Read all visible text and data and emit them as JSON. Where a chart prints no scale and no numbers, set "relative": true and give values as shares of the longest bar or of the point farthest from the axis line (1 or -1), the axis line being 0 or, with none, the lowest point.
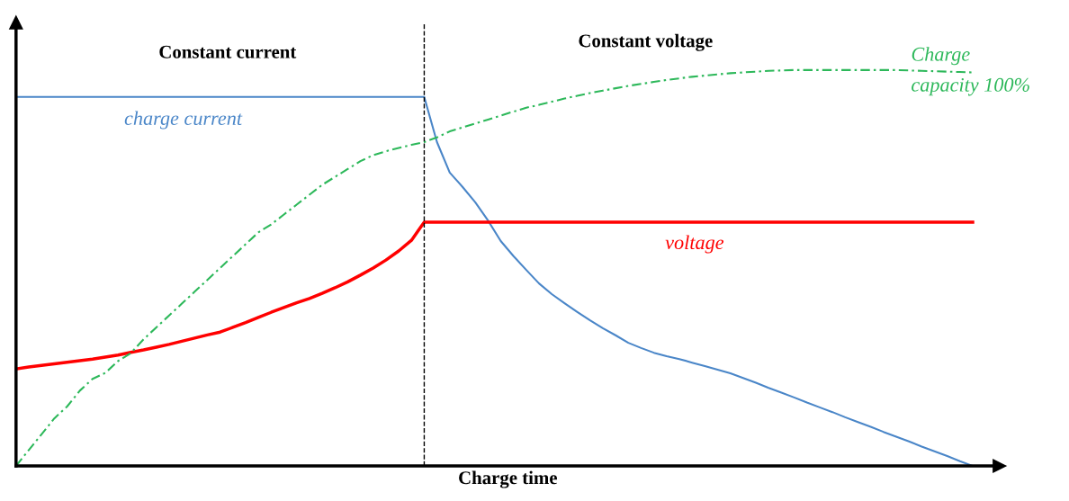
{
  "chart_data": {
    "type": "line",
    "relative": true,
    "xlabel": "Charge time",
    "annotations": [
      "Constant current",
      "Constant voltage"
    ],
    "categories": [
      null,
      null,
      null,
      null,
      null,
      null,
      null,
      null,
      null,
      null,
      null,
      null,
      null,
      null,
      null,
      null,
      null,
      null,
      null,
      null,
      null,
      null,
      null,
      null,
      null,
      null,
      null,
      null,
      null,
      null,
      null,
      null,
      null,
      null,
      null,
      null,
      null,
      null,
      null,
      null,
      null,
      null,
      null,
      null,
      null,
      null,
      null,
      null,
      null,
      null,
      null,
      null,
      null,
      null,
      null,
      null,
      null,
      null,
      null,
      null,
      null,
      null,
      null,
      null,
      null,
      null,
      null,
      null,
      null,
      null,
      null,
      null,
      null,
      null,
      null,
      null
    ],
    "series": [
      {
        "name": "charge current",
        "color": "#4a86c8",
        "line_style": "solid",
        "values": [
          0.932,
          0.932,
          0.932,
          0.932,
          0.932,
          0.932,
          0.932,
          0.932,
          0.932,
          0.932,
          0.932,
          0.932,
          0.932,
          0.932,
          0.932,
          0.932,
          0.932,
          0.932,
          0.932,
          0.932,
          0.932,
          0.932,
          0.932,
          0.932,
          0.932,
          0.932,
          0.932,
          0.932,
          0.932,
          0.932,
          0.932,
          0.932,
          0.932,
          0.818,
          0.741,
          0.705,
          0.666,
          0.62,
          0.568,
          0.53,
          0.495,
          0.461,
          0.434,
          0.411,
          0.389,
          0.368,
          0.348,
          0.33,
          0.311,
          0.298,
          0.286,
          0.277,
          0.27,
          0.261,
          0.252,
          0.243,
          0.234,
          0.222,
          0.21,
          0.197,
          0.185,
          0.173,
          0.16,
          0.148,
          0.136,
          0.123,
          0.111,
          0.099,
          0.086,
          0.074,
          0.062,
          0.049,
          0.037,
          0.025,
          0.012,
          0
        ]
      },
      {
        "name": "voltage",
        "color": "#ff0000",
        "line_style": "solid",
        "values": [
          0.245,
          0.25,
          0.254,
          0.258,
          0.262,
          0.266,
          0.27,
          0.275,
          0.28,
          0.287,
          0.293,
          0.3,
          0.307,
          0.315,
          0.323,
          0.331,
          0.338,
          0.35,
          0.362,
          0.375,
          0.388,
          0.4,
          0.412,
          0.423,
          0.436,
          0.45,
          0.465,
          0.482,
          0.5,
          0.52,
          0.543,
          0.57,
          0.616,
          0.616,
          0.616,
          0.616,
          0.616,
          0.616,
          0.616,
          0.616,
          0.616,
          0.616,
          0.616,
          0.616,
          0.616,
          0.616,
          0.616,
          0.616,
          0.616,
          0.616,
          0.616,
          0.616,
          0.616,
          0.616,
          0.616,
          0.616,
          0.616,
          0.616,
          0.616,
          0.616,
          0.616,
          0.616,
          0.616,
          0.616,
          0.616,
          0.616,
          0.616,
          0.616,
          0.616,
          0.616,
          0.616,
          0.616,
          0.616,
          0.616,
          0.616,
          0.616
        ]
      },
      {
        "name": "Charge\ncapacity 100%",
        "color": "#2db85a",
        "line_style": "dashdot",
        "values": [
          0,
          0.04,
          0.08,
          0.12,
          0.15,
          0.19,
          0.22,
          0.235,
          0.265,
          0.285,
          0.32,
          0.35,
          0.38,
          0.41,
          0.44,
          0.47,
          0.5,
          0.53,
          0.56,
          0.59,
          0.61,
          0.635,
          0.66,
          0.685,
          0.71,
          0.73,
          0.75,
          0.77,
          0.785,
          0.795,
          0.803,
          0.811,
          0.818,
          0.83,
          0.845,
          0.855,
          0.865,
          0.875,
          0.885,
          0.895,
          0.905,
          0.912,
          0.92,
          0.928,
          0.935,
          0.942,
          0.948,
          0.954,
          0.96,
          0.965,
          0.97,
          0.975,
          0.979,
          0.983,
          0.986,
          0.989,
          0.992,
          0.994,
          0.996,
          0.998,
          0.999,
          1,
          1,
          1,
          1,
          1,
          1,
          1,
          1,
          1,
          0.999,
          0.998,
          0.997,
          0.996,
          0.995,
          0.994
        ]
      }
    ],
    "legend": false
  }
}
